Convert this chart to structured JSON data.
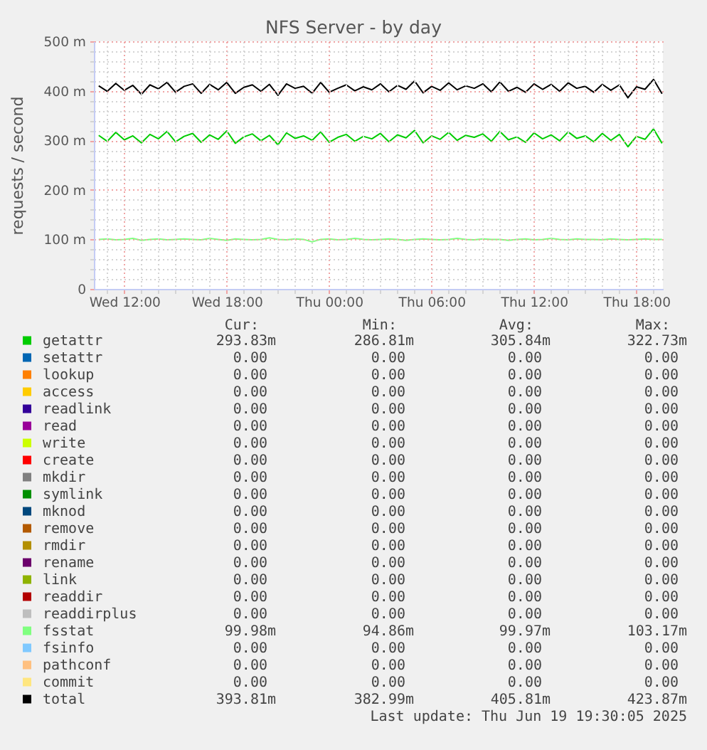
{
  "chart_data": {
    "type": "line",
    "title": "NFS Server - by day",
    "ylabel": "requests / second",
    "x": [
      "2025-06-18T10:30",
      "2025-06-18T11:00",
      "2025-06-18T11:30",
      "2025-06-18T12:00",
      "2025-06-18T12:30",
      "2025-06-18T13:00",
      "2025-06-18T13:30",
      "2025-06-18T14:00",
      "2025-06-18T14:30",
      "2025-06-18T15:00",
      "2025-06-18T15:30",
      "2025-06-18T16:00",
      "2025-06-18T16:30",
      "2025-06-18T17:00",
      "2025-06-18T17:30",
      "2025-06-18T18:00",
      "2025-06-18T18:30",
      "2025-06-18T19:00",
      "2025-06-18T19:30",
      "2025-06-18T20:00",
      "2025-06-18T20:30",
      "2025-06-18T21:00",
      "2025-06-18T21:30",
      "2025-06-18T22:00",
      "2025-06-18T22:30",
      "2025-06-18T23:00",
      "2025-06-18T23:30",
      "2025-06-19T00:00",
      "2025-06-19T00:30",
      "2025-06-19T01:00",
      "2025-06-19T01:30",
      "2025-06-19T02:00",
      "2025-06-19T02:30",
      "2025-06-19T03:00",
      "2025-06-19T03:30",
      "2025-06-19T04:00",
      "2025-06-19T04:30",
      "2025-06-19T05:00",
      "2025-06-19T05:30",
      "2025-06-19T06:00",
      "2025-06-19T06:30",
      "2025-06-19T07:00",
      "2025-06-19T07:30",
      "2025-06-19T08:00",
      "2025-06-19T08:30",
      "2025-06-19T09:00",
      "2025-06-19T09:30",
      "2025-06-19T10:00",
      "2025-06-19T10:30",
      "2025-06-19T11:00",
      "2025-06-19T11:30",
      "2025-06-19T12:00",
      "2025-06-19T12:30",
      "2025-06-19T13:00",
      "2025-06-19T13:30",
      "2025-06-19T14:00",
      "2025-06-19T14:30",
      "2025-06-19T15:00",
      "2025-06-19T15:30",
      "2025-06-19T16:00",
      "2025-06-19T16:30",
      "2025-06-19T17:00",
      "2025-06-19T17:30",
      "2025-06-19T18:00",
      "2025-06-19T18:30",
      "2025-06-19T19:00",
      "2025-06-19T19:30"
    ],
    "series": [
      {
        "name": "getattr",
        "color": "#00cc00",
        "values": [
          310,
          298,
          316,
          301,
          309,
          295,
          312,
          303,
          318,
          297,
          308,
          314,
          296,
          311,
          302,
          319,
          294,
          307,
          313,
          299,
          310,
          291,
          315,
          304,
          309,
          300,
          317,
          296,
          306,
          312,
          298,
          308,
          303,
          314,
          297,
          311,
          305,
          320,
          295,
          309,
          302,
          316,
          300,
          310,
          306,
          313,
          298,
          318,
          301,
          307,
          296,
          315,
          303,
          311,
          299,
          317,
          304,
          309,
          297,
          314,
          300,
          312,
          287,
          308,
          302,
          323,
          294
        ]
      },
      {
        "name": "setattr",
        "color": "#0066b3",
        "values": [
          null,
          null,
          null,
          null,
          null,
          null,
          null,
          null,
          null,
          null,
          null,
          null,
          null,
          null,
          null,
          null,
          null,
          null,
          null,
          null,
          null,
          null,
          null,
          null,
          null,
          null,
          null,
          null,
          null,
          null,
          null,
          null,
          null,
          null,
          null,
          null,
          null,
          null,
          null,
          null,
          null,
          null,
          null,
          null,
          null,
          null,
          null,
          null,
          null,
          null,
          null,
          null,
          null,
          null,
          null,
          null,
          null,
          null,
          null,
          null,
          null,
          null,
          null,
          null,
          null,
          null,
          null
        ]
      },
      {
        "name": "lookup",
        "color": "#ff8000",
        "values": [
          null,
          null,
          null,
          null,
          null,
          null,
          null,
          null,
          null,
          null,
          null,
          null,
          null,
          null,
          null,
          null,
          null,
          null,
          null,
          null,
          null,
          null,
          null,
          null,
          null,
          null,
          null,
          null,
          null,
          null,
          null,
          null,
          null,
          null,
          null,
          null,
          null,
          null,
          null,
          null,
          null,
          null,
          null,
          null,
          null,
          null,
          null,
          null,
          null,
          null,
          null,
          null,
          null,
          null,
          null,
          null,
          null,
          null,
          null,
          null,
          null,
          null,
          null,
          null,
          null,
          null,
          null
        ]
      },
      {
        "name": "access",
        "color": "#ffcc00",
        "values": [
          null,
          null,
          null,
          null,
          null,
          null,
          null,
          null,
          null,
          null,
          null,
          null,
          null,
          null,
          null,
          null,
          null,
          null,
          null,
          null,
          null,
          null,
          null,
          null,
          null,
          null,
          null,
          null,
          null,
          null,
          null,
          null,
          null,
          null,
          null,
          null,
          null,
          null,
          null,
          null,
          null,
          null,
          null,
          null,
          null,
          null,
          null,
          null,
          null,
          null,
          null,
          null,
          null,
          null,
          null,
          null,
          null,
          null,
          null,
          null,
          null,
          null,
          null,
          null,
          null,
          null,
          null
        ]
      },
      {
        "name": "readlink",
        "color": "#330099",
        "values": [
          null,
          null,
          null,
          null,
          null,
          null,
          null,
          null,
          null,
          null,
          null,
          null,
          null,
          null,
          null,
          null,
          null,
          null,
          null,
          null,
          null,
          null,
          null,
          null,
          null,
          null,
          null,
          null,
          null,
          null,
          null,
          null,
          null,
          null,
          null,
          null,
          null,
          null,
          null,
          null,
          null,
          null,
          null,
          null,
          null,
          null,
          null,
          null,
          null,
          null,
          null,
          null,
          null,
          null,
          null,
          null,
          null,
          null,
          null,
          null,
          null,
          null,
          null,
          null,
          null,
          null,
          null
        ]
      },
      {
        "name": "read",
        "color": "#990099",
        "values": [
          null,
          null,
          null,
          null,
          null,
          null,
          null,
          null,
          null,
          null,
          null,
          null,
          null,
          null,
          null,
          null,
          null,
          null,
          null,
          null,
          null,
          null,
          null,
          null,
          null,
          null,
          null,
          null,
          null,
          null,
          null,
          null,
          null,
          null,
          null,
          null,
          null,
          null,
          null,
          null,
          null,
          null,
          null,
          null,
          null,
          null,
          null,
          null,
          null,
          null,
          null,
          null,
          null,
          null,
          null,
          null,
          null,
          null,
          null,
          null,
          null,
          null,
          null,
          null,
          null,
          null,
          null
        ]
      },
      {
        "name": "write",
        "color": "#ccff00",
        "values": [
          null,
          null,
          null,
          null,
          null,
          null,
          null,
          null,
          null,
          null,
          null,
          null,
          null,
          null,
          null,
          null,
          null,
          null,
          null,
          null,
          null,
          null,
          null,
          null,
          null,
          null,
          null,
          null,
          null,
          null,
          null,
          null,
          null,
          null,
          null,
          null,
          null,
          null,
          null,
          null,
          null,
          null,
          null,
          null,
          null,
          null,
          null,
          null,
          null,
          null,
          null,
          null,
          null,
          null,
          null,
          null,
          null,
          null,
          null,
          null,
          null,
          null,
          null,
          null,
          null,
          null,
          null
        ]
      },
      {
        "name": "create",
        "color": "#ff0000",
        "values": [
          null,
          null,
          null,
          null,
          null,
          null,
          null,
          null,
          null,
          null,
          null,
          null,
          null,
          null,
          null,
          null,
          null,
          null,
          null,
          null,
          null,
          null,
          null,
          null,
          null,
          null,
          null,
          null,
          null,
          null,
          null,
          null,
          null,
          null,
          null,
          null,
          null,
          null,
          null,
          null,
          null,
          null,
          null,
          null,
          null,
          null,
          null,
          null,
          null,
          null,
          null,
          null,
          null,
          null,
          null,
          null,
          null,
          null,
          null,
          null,
          null,
          null,
          null,
          null,
          null,
          null,
          null
        ]
      },
      {
        "name": "mkdir",
        "color": "#808080",
        "values": [
          null,
          null,
          null,
          null,
          null,
          null,
          null,
          null,
          null,
          null,
          null,
          null,
          null,
          null,
          null,
          null,
          null,
          null,
          null,
          null,
          null,
          null,
          null,
          null,
          null,
          null,
          null,
          null,
          null,
          null,
          null,
          null,
          null,
          null,
          null,
          null,
          null,
          null,
          null,
          null,
          null,
          null,
          null,
          null,
          null,
          null,
          null,
          null,
          null,
          null,
          null,
          null,
          null,
          null,
          null,
          null,
          null,
          null,
          null,
          null,
          null,
          null,
          null,
          null,
          null,
          null,
          null
        ]
      },
      {
        "name": "symlink",
        "color": "#008f00",
        "values": [
          null,
          null,
          null,
          null,
          null,
          null,
          null,
          null,
          null,
          null,
          null,
          null,
          null,
          null,
          null,
          null,
          null,
          null,
          null,
          null,
          null,
          null,
          null,
          null,
          null,
          null,
          null,
          null,
          null,
          null,
          null,
          null,
          null,
          null,
          null,
          null,
          null,
          null,
          null,
          null,
          null,
          null,
          null,
          null,
          null,
          null,
          null,
          null,
          null,
          null,
          null,
          null,
          null,
          null,
          null,
          null,
          null,
          null,
          null,
          null,
          null,
          null,
          null,
          null,
          null,
          null,
          null
        ]
      },
      {
        "name": "mknod",
        "color": "#00487d",
        "values": [
          null,
          null,
          null,
          null,
          null,
          null,
          null,
          null,
          null,
          null,
          null,
          null,
          null,
          null,
          null,
          null,
          null,
          null,
          null,
          null,
          null,
          null,
          null,
          null,
          null,
          null,
          null,
          null,
          null,
          null,
          null,
          null,
          null,
          null,
          null,
          null,
          null,
          null,
          null,
          null,
          null,
          null,
          null,
          null,
          null,
          null,
          null,
          null,
          null,
          null,
          null,
          null,
          null,
          null,
          null,
          null,
          null,
          null,
          null,
          null,
          null,
          null,
          null,
          null,
          null,
          null,
          null
        ]
      },
      {
        "name": "remove",
        "color": "#b35a00",
        "values": [
          null,
          null,
          null,
          null,
          null,
          null,
          null,
          null,
          null,
          null,
          null,
          null,
          null,
          null,
          null,
          null,
          null,
          null,
          null,
          null,
          null,
          null,
          null,
          null,
          null,
          null,
          null,
          null,
          null,
          null,
          null,
          null,
          null,
          null,
          null,
          null,
          null,
          null,
          null,
          null,
          null,
          null,
          null,
          null,
          null,
          null,
          null,
          null,
          null,
          null,
          null,
          null,
          null,
          null,
          null,
          null,
          null,
          null,
          null,
          null,
          null,
          null,
          null,
          null,
          null,
          null,
          null
        ]
      },
      {
        "name": "rmdir",
        "color": "#b38f00",
        "values": [
          null,
          null,
          null,
          null,
          null,
          null,
          null,
          null,
          null,
          null,
          null,
          null,
          null,
          null,
          null,
          null,
          null,
          null,
          null,
          null,
          null,
          null,
          null,
          null,
          null,
          null,
          null,
          null,
          null,
          null,
          null,
          null,
          null,
          null,
          null,
          null,
          null,
          null,
          null,
          null,
          null,
          null,
          null,
          null,
          null,
          null,
          null,
          null,
          null,
          null,
          null,
          null,
          null,
          null,
          null,
          null,
          null,
          null,
          null,
          null,
          null,
          null,
          null,
          null,
          null,
          null,
          null
        ]
      },
      {
        "name": "rename",
        "color": "#6b006b",
        "values": [
          null,
          null,
          null,
          null,
          null,
          null,
          null,
          null,
          null,
          null,
          null,
          null,
          null,
          null,
          null,
          null,
          null,
          null,
          null,
          null,
          null,
          null,
          null,
          null,
          null,
          null,
          null,
          null,
          null,
          null,
          null,
          null,
          null,
          null,
          null,
          null,
          null,
          null,
          null,
          null,
          null,
          null,
          null,
          null,
          null,
          null,
          null,
          null,
          null,
          null,
          null,
          null,
          null,
          null,
          null,
          null,
          null,
          null,
          null,
          null,
          null,
          null,
          null,
          null,
          null,
          null,
          null
        ]
      },
      {
        "name": "link",
        "color": "#8fb300",
        "values": [
          null,
          null,
          null,
          null,
          null,
          null,
          null,
          null,
          null,
          null,
          null,
          null,
          null,
          null,
          null,
          null,
          null,
          null,
          null,
          null,
          null,
          null,
          null,
          null,
          null,
          null,
          null,
          null,
          null,
          null,
          null,
          null,
          null,
          null,
          null,
          null,
          null,
          null,
          null,
          null,
          null,
          null,
          null,
          null,
          null,
          null,
          null,
          null,
          null,
          null,
          null,
          null,
          null,
          null,
          null,
          null,
          null,
          null,
          null,
          null,
          null,
          null,
          null,
          null,
          null,
          null,
          null
        ]
      },
      {
        "name": "readdir",
        "color": "#b30000",
        "values": [
          null,
          null,
          null,
          null,
          null,
          null,
          null,
          null,
          null,
          null,
          null,
          null,
          null,
          null,
          null,
          null,
          null,
          null,
          null,
          null,
          null,
          null,
          null,
          null,
          null,
          null,
          null,
          null,
          null,
          null,
          null,
          null,
          null,
          null,
          null,
          null,
          null,
          null,
          null,
          null,
          null,
          null,
          null,
          null,
          null,
          null,
          null,
          null,
          null,
          null,
          null,
          null,
          null,
          null,
          null,
          null,
          null,
          null,
          null,
          null,
          null,
          null,
          null,
          null,
          null,
          null,
          null
        ]
      },
      {
        "name": "readdirplus",
        "color": "#bebebe",
        "values": [
          null,
          null,
          null,
          null,
          null,
          null,
          null,
          null,
          null,
          null,
          null,
          null,
          null,
          null,
          null,
          null,
          null,
          null,
          null,
          null,
          null,
          null,
          null,
          null,
          null,
          null,
          null,
          null,
          null,
          null,
          null,
          null,
          null,
          null,
          null,
          null,
          null,
          null,
          null,
          null,
          null,
          null,
          null,
          null,
          null,
          null,
          null,
          null,
          null,
          null,
          null,
          null,
          null,
          null,
          null,
          null,
          null,
          null,
          null,
          null,
          null,
          null,
          null,
          null,
          null,
          null,
          null
        ]
      },
      {
        "name": "fsstat",
        "color": "#80ff80",
        "values": [
          100,
          101,
          99,
          100,
          102,
          98,
          100,
          101,
          99,
          100,
          101,
          100,
          99,
          102,
          100,
          98,
          101,
          100,
          99,
          100,
          103,
          100,
          99,
          101,
          100,
          95,
          100,
          101,
          99,
          100,
          102,
          100,
          99,
          100,
          101,
          100,
          98,
          100,
          101,
          100,
          99,
          100,
          102,
          100,
          99,
          101,
          100,
          100,
          98,
          100,
          101,
          99,
          100,
          102,
          100,
          99,
          101,
          100,
          100,
          99,
          101,
          100,
          99,
          100,
          101,
          100,
          100
        ]
      },
      {
        "name": "fsinfo",
        "color": "#80c9ff",
        "values": [
          null,
          null,
          null,
          null,
          null,
          null,
          null,
          null,
          null,
          null,
          null,
          null,
          null,
          null,
          null,
          null,
          null,
          null,
          null,
          null,
          null,
          null,
          null,
          null,
          null,
          null,
          null,
          null,
          null,
          null,
          null,
          null,
          null,
          null,
          null,
          null,
          null,
          null,
          null,
          null,
          null,
          null,
          null,
          null,
          null,
          null,
          null,
          null,
          null,
          null,
          null,
          null,
          null,
          null,
          null,
          null,
          null,
          null,
          null,
          null,
          null,
          null,
          null,
          null,
          null,
          null,
          null
        ]
      },
      {
        "name": "pathconf",
        "color": "#ffc080",
        "values": [
          null,
          null,
          null,
          null,
          null,
          null,
          null,
          null,
          null,
          null,
          null,
          null,
          null,
          null,
          null,
          null,
          null,
          null,
          null,
          null,
          null,
          null,
          null,
          null,
          null,
          null,
          null,
          null,
          null,
          null,
          null,
          null,
          null,
          null,
          null,
          null,
          null,
          null,
          null,
          null,
          null,
          null,
          null,
          null,
          null,
          null,
          null,
          null,
          null,
          null,
          null,
          null,
          null,
          null,
          null,
          null,
          null,
          null,
          null,
          null,
          null,
          null,
          null,
          null,
          null,
          null,
          null
        ]
      },
      {
        "name": "commit",
        "color": "#ffe680",
        "values": [
          null,
          null,
          null,
          null,
          null,
          null,
          null,
          null,
          null,
          null,
          null,
          null,
          null,
          null,
          null,
          null,
          null,
          null,
          null,
          null,
          null,
          null,
          null,
          null,
          null,
          null,
          null,
          null,
          null,
          null,
          null,
          null,
          null,
          null,
          null,
          null,
          null,
          null,
          null,
          null,
          null,
          null,
          null,
          null,
          null,
          null,
          null,
          null,
          null,
          null,
          null,
          null,
          null,
          null,
          null,
          null,
          null,
          null,
          null,
          null,
          null,
          null,
          null,
          null,
          null,
          null,
          null
        ]
      },
      {
        "name": "total",
        "color": "#000000",
        "values": [
          410,
          399,
          415,
          401,
          411,
          393,
          412,
          404,
          417,
          397,
          409,
          414,
          395,
          413,
          402,
          417,
          395,
          407,
          412,
          399,
          413,
          391,
          414,
          405,
          409,
          395,
          417,
          397,
          405,
          412,
          400,
          408,
          402,
          414,
          398,
          411,
          403,
          420,
          396,
          409,
          401,
          416,
          402,
          410,
          405,
          414,
          398,
          418,
          399,
          407,
          397,
          414,
          403,
          413,
          399,
          416,
          405,
          409,
          397,
          413,
          401,
          412,
          386,
          408,
          403,
          423,
          394
        ]
      }
    ],
    "xlim": [
      "2025-06-18T10:13",
      "2025-06-19T19:33"
    ],
    "xticks": [
      {
        "value": "2025-06-18T11:00",
        "label": null
      },
      {
        "value": "2025-06-18T12:00",
        "label": "Wed 12:00"
      },
      {
        "value": "2025-06-18T13:00",
        "label": null
      },
      {
        "value": "2025-06-18T14:00",
        "label": null
      },
      {
        "value": "2025-06-18T15:00",
        "label": null
      },
      {
        "value": "2025-06-18T16:00",
        "label": null
      },
      {
        "value": "2025-06-18T17:00",
        "label": null
      },
      {
        "value": "2025-06-18T18:00",
        "label": "Wed 18:00"
      },
      {
        "value": "2025-06-18T19:00",
        "label": null
      },
      {
        "value": "2025-06-18T20:00",
        "label": null
      },
      {
        "value": "2025-06-18T21:00",
        "label": null
      },
      {
        "value": "2025-06-18T22:00",
        "label": null
      },
      {
        "value": "2025-06-18T23:00",
        "label": null
      },
      {
        "value": "2025-06-19T00:00",
        "label": "Thu 00:00"
      },
      {
        "value": "2025-06-19T01:00",
        "label": null
      },
      {
        "value": "2025-06-19T02:00",
        "label": null
      },
      {
        "value": "2025-06-19T03:00",
        "label": null
      },
      {
        "value": "2025-06-19T04:00",
        "label": null
      },
      {
        "value": "2025-06-19T05:00",
        "label": null
      },
      {
        "value": "2025-06-19T06:00",
        "label": "Thu 06:00"
      },
      {
        "value": "2025-06-19T07:00",
        "label": null
      },
      {
        "value": "2025-06-19T08:00",
        "label": null
      },
      {
        "value": "2025-06-19T09:00",
        "label": null
      },
      {
        "value": "2025-06-19T10:00",
        "label": null
      },
      {
        "value": "2025-06-19T11:00",
        "label": null
      },
      {
        "value": "2025-06-19T12:00",
        "label": "Thu 12:00"
      },
      {
        "value": "2025-06-19T13:00",
        "label": null
      },
      {
        "value": "2025-06-19T14:00",
        "label": null
      },
      {
        "value": "2025-06-19T15:00",
        "label": null
      },
      {
        "value": "2025-06-19T16:00",
        "label": null
      },
      {
        "value": "2025-06-19T17:00",
        "label": null
      },
      {
        "value": "2025-06-19T18:00",
        "label": "Thu 18:00"
      },
      {
        "value": "2025-06-19T19:00",
        "label": null
      }
    ],
    "ylim": [
      0,
      500
    ],
    "yticks": [
      0,
      {
        "value": 20,
        "label": null
      },
      {
        "value": 40,
        "label": null
      },
      {
        "value": 60,
        "label": null
      },
      {
        "value": 80,
        "label": null
      },
      {
        "value": 100,
        "label": "100 m"
      },
      {
        "value": 120,
        "label": null
      },
      {
        "value": 140,
        "label": null
      },
      {
        "value": 160,
        "label": null
      },
      {
        "value": 180,
        "label": null
      },
      {
        "value": 200,
        "label": "200 m"
      },
      {
        "value": 220,
        "label": null
      },
      {
        "value": 240,
        "label": null
      },
      {
        "value": 260,
        "label": null
      },
      {
        "value": 280,
        "label": null
      },
      {
        "value": 300,
        "label": "300 m"
      },
      {
        "value": 320,
        "label": null
      },
      {
        "value": 340,
        "label": null
      },
      {
        "value": 360,
        "label": null
      },
      {
        "value": 380,
        "label": null
      },
      {
        "value": 400,
        "label": "400 m"
      },
      {
        "value": 420,
        "label": null
      },
      {
        "value": 440,
        "label": null
      },
      {
        "value": 460,
        "label": null
      },
      {
        "value": 480,
        "label": null
      },
      {
        "value": 500,
        "label": "500 m"
      }
    ],
    "grid": true,
    "legend": "bottom",
    "annotations": [
      "Cur:",
      "Min:",
      "Avg:",
      "Max:",
      "293.83m",
      "286.81m",
      "305.84m",
      "322.73m",
      "0.00",
      "0.00",
      "0.00",
      "0.00",
      "0.00",
      "0.00",
      "0.00",
      "0.00",
      "0.00",
      "0.00",
      "0.00",
      "0.00",
      "0.00",
      "0.00",
      "0.00",
      "0.00",
      "0.00",
      "0.00",
      "0.00",
      "0.00",
      "0.00",
      "0.00",
      "0.00",
      "0.00",
      "0.00",
      "0.00",
      "0.00",
      "0.00",
      "0.00",
      "0.00",
      "0.00",
      "0.00",
      "0.00",
      "0.00",
      "0.00",
      "0.00",
      "0.00",
      "0.00",
      "0.00",
      "0.00",
      "0.00",
      "0.00",
      "0.00",
      "0.00",
      "0.00",
      "0.00",
      "0.00",
      "0.00",
      "0.00",
      "0.00",
      "0.00",
      "0.00",
      "0.00",
      "0.00",
      "0.00",
      "0.00",
      "0.00",
      "0.00",
      "0.00",
      "0.00",
      "0.00",
      "0.00",
      "0.00",
      "0.00",
      "99.98m",
      "94.86m",
      "99.97m",
      "103.17m",
      "0.00",
      "0.00",
      "0.00",
      "0.00",
      "0.00",
      "0.00",
      "0.00",
      "0.00",
      "0.00",
      "0.00",
      "0.00",
      "0.00",
      "393.81m",
      "382.99m",
      "405.81m",
      "423.87m",
      "Last update: Thu Jun 19 19:30:05 2025"
    ]
  }
}
